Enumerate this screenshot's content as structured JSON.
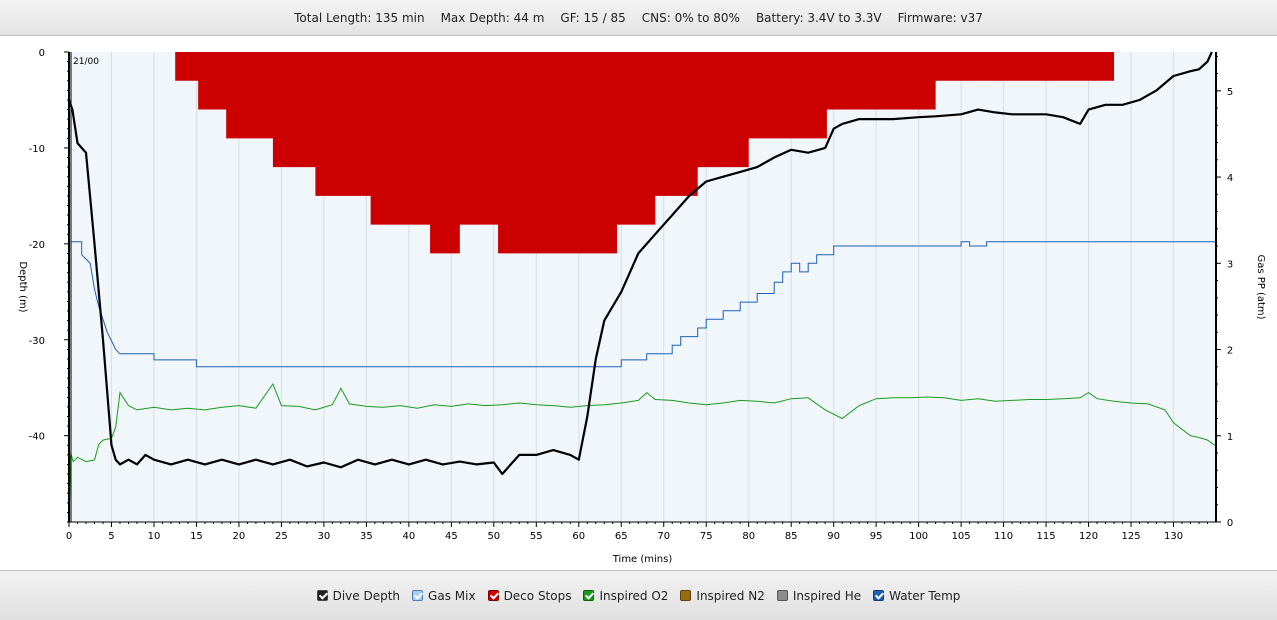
{
  "summary": {
    "total_length": "Total Length: 135 min",
    "max_depth": "Max Depth: 44 m",
    "gf": "GF: 15 / 85",
    "cns": "CNS: 0% to 80%",
    "battery": "Battery: 3.4V to 3.3V",
    "firmware": "Firmware: v37"
  },
  "legend": {
    "dive_depth": "Dive Depth",
    "gas_mix": "Gas Mix",
    "deco_stops": "Deco Stops",
    "inspired_o2": "Inspired O2",
    "inspired_n2": "Inspired N2",
    "inspired_he": "Inspired He",
    "water_temp": "Water Temp"
  },
  "chart_data": {
    "type": "line",
    "xlabel": "Time (mins)",
    "ylabel_left": "Depth (m)",
    "ylabel_right": "Gas PP (atm)",
    "x_range": [
      0,
      135
    ],
    "y_left_range": [
      -49,
      0
    ],
    "y_right_range": [
      0,
      5.45
    ],
    "x_ticks": [
      0,
      5,
      10,
      15,
      20,
      25,
      30,
      35,
      40,
      45,
      50,
      55,
      60,
      65,
      70,
      75,
      80,
      85,
      90,
      95,
      100,
      105,
      110,
      115,
      120,
      125,
      130
    ],
    "y_left_ticks": [
      0,
      -10,
      -20,
      -30,
      -40
    ],
    "y_right_ticks": [
      0,
      1,
      2,
      3,
      4,
      5
    ],
    "gas_mix_label": "21/00",
    "grid": "vertical",
    "colors": {
      "depth": "#000000",
      "deco": "#cc0000",
      "o2": "#1a9b1a",
      "temp": "#1c5fb5",
      "plot_bg": "#f1f6fb"
    },
    "series": [
      {
        "name": "Dive Depth",
        "axis": "left",
        "points": [
          [
            0,
            -5
          ],
          [
            0.4,
            -6
          ],
          [
            1,
            -9.5
          ],
          [
            1.5,
            -10
          ],
          [
            2,
            -10.5
          ],
          [
            3,
            -20
          ],
          [
            4,
            -30
          ],
          [
            5,
            -41
          ],
          [
            5.5,
            -42.5
          ],
          [
            6,
            -43
          ],
          [
            7,
            -42.5
          ],
          [
            8,
            -43
          ],
          [
            9,
            -42
          ],
          [
            10,
            -42.5
          ],
          [
            12,
            -43
          ],
          [
            14,
            -42.5
          ],
          [
            16,
            -43
          ],
          [
            18,
            -42.5
          ],
          [
            20,
            -43
          ],
          [
            22,
            -42.5
          ],
          [
            24,
            -43
          ],
          [
            26,
            -42.5
          ],
          [
            28,
            -43.2
          ],
          [
            30,
            -42.8
          ],
          [
            32,
            -43.3
          ],
          [
            34,
            -42.5
          ],
          [
            36,
            -43
          ],
          [
            38,
            -42.5
          ],
          [
            40,
            -43
          ],
          [
            42,
            -42.5
          ],
          [
            44,
            -43
          ],
          [
            46,
            -42.7
          ],
          [
            48,
            -43
          ],
          [
            50,
            -42.8
          ],
          [
            51,
            -44
          ],
          [
            52,
            -43
          ],
          [
            53,
            -42
          ],
          [
            55,
            -42
          ],
          [
            57,
            -41.5
          ],
          [
            59,
            -42
          ],
          [
            60,
            -42.5
          ],
          [
            61,
            -38
          ],
          [
            62,
            -32
          ],
          [
            63,
            -28
          ],
          [
            65,
            -25
          ],
          [
            67,
            -21
          ],
          [
            69,
            -19
          ],
          [
            71,
            -17
          ],
          [
            73,
            -15
          ],
          [
            75,
            -13.5
          ],
          [
            77,
            -13
          ],
          [
            79,
            -12.5
          ],
          [
            81,
            -12
          ],
          [
            83,
            -11
          ],
          [
            85,
            -10.2
          ],
          [
            87,
            -10.5
          ],
          [
            89,
            -10
          ],
          [
            90,
            -8
          ],
          [
            91,
            -7.5
          ],
          [
            93,
            -7
          ],
          [
            95,
            -7
          ],
          [
            97,
            -7
          ],
          [
            100,
            -6.8
          ],
          [
            102,
            -6.7
          ],
          [
            105,
            -6.5
          ],
          [
            107,
            -6
          ],
          [
            109,
            -6.3
          ],
          [
            111,
            -6.5
          ],
          [
            113,
            -6.5
          ],
          [
            115,
            -6.5
          ],
          [
            117,
            -6.8
          ],
          [
            119,
            -7.5
          ],
          [
            120,
            -6
          ],
          [
            122,
            -5.5
          ],
          [
            124,
            -5.5
          ],
          [
            126,
            -5
          ],
          [
            128,
            -4
          ],
          [
            130,
            -2.5
          ],
          [
            132,
            -2
          ],
          [
            133,
            -1.8
          ],
          [
            134,
            -1
          ],
          [
            134.5,
            0
          ]
        ]
      },
      {
        "name": "Deco Stops",
        "axis": "left",
        "points": [
          [
            12.5,
            -3
          ],
          [
            15.2,
            -3
          ],
          [
            15.2,
            -6
          ],
          [
            18.5,
            -6
          ],
          [
            18.5,
            -9
          ],
          [
            24,
            -9
          ],
          [
            24,
            -12
          ],
          [
            29,
            -12
          ],
          [
            29,
            -15
          ],
          [
            35.5,
            -15
          ],
          [
            35.5,
            -18
          ],
          [
            42.5,
            -18
          ],
          [
            42.5,
            -21
          ],
          [
            46,
            -21
          ],
          [
            46,
            -18
          ],
          [
            50.5,
            -18
          ],
          [
            50.5,
            -21
          ],
          [
            64.5,
            -21
          ],
          [
            64.5,
            -18
          ],
          [
            69,
            -18
          ],
          [
            69,
            -15
          ],
          [
            74,
            -15
          ],
          [
            74,
            -12
          ],
          [
            80,
            -12
          ],
          [
            80,
            -9
          ],
          [
            89.2,
            -9
          ],
          [
            89.2,
            -6
          ],
          [
            102,
            -6
          ],
          [
            102,
            -3
          ],
          [
            123,
            -3
          ]
        ]
      },
      {
        "name": "Inspired O2",
        "axis": "right",
        "points": [
          [
            0,
            0
          ],
          [
            0.2,
            0.8
          ],
          [
            0.5,
            0.7
          ],
          [
            1,
            0.75
          ],
          [
            2,
            0.7
          ],
          [
            3,
            0.72
          ],
          [
            3.5,
            0.9
          ],
          [
            4,
            0.95
          ],
          [
            5,
            0.97
          ],
          [
            5.5,
            1.1
          ],
          [
            6,
            1.5
          ],
          [
            7,
            1.35
          ],
          [
            8,
            1.3
          ],
          [
            10,
            1.33
          ],
          [
            12,
            1.3
          ],
          [
            14,
            1.32
          ],
          [
            16,
            1.3
          ],
          [
            18,
            1.33
          ],
          [
            20,
            1.35
          ],
          [
            22,
            1.32
          ],
          [
            24,
            1.6
          ],
          [
            25,
            1.35
          ],
          [
            27,
            1.34
          ],
          [
            29,
            1.3
          ],
          [
            31,
            1.36
          ],
          [
            32,
            1.55
          ],
          [
            33,
            1.37
          ],
          [
            35,
            1.34
          ],
          [
            37,
            1.33
          ],
          [
            39,
            1.35
          ],
          [
            41,
            1.32
          ],
          [
            43,
            1.36
          ],
          [
            45,
            1.34
          ],
          [
            47,
            1.37
          ],
          [
            49,
            1.35
          ],
          [
            51,
            1.36
          ],
          [
            53,
            1.38
          ],
          [
            55,
            1.36
          ],
          [
            57,
            1.35
          ],
          [
            59,
            1.33
          ],
          [
            61,
            1.35
          ],
          [
            63,
            1.36
          ],
          [
            65,
            1.38
          ],
          [
            67,
            1.41
          ],
          [
            68,
            1.5
          ],
          [
            69,
            1.42
          ],
          [
            71,
            1.41
          ],
          [
            73,
            1.38
          ],
          [
            75,
            1.36
          ],
          [
            77,
            1.38
          ],
          [
            79,
            1.41
          ],
          [
            81,
            1.4
          ],
          [
            83,
            1.38
          ],
          [
            85,
            1.43
          ],
          [
            87,
            1.44
          ],
          [
            89,
            1.3
          ],
          [
            91,
            1.2
          ],
          [
            93,
            1.35
          ],
          [
            95,
            1.43
          ],
          [
            97,
            1.44
          ],
          [
            99,
            1.44
          ],
          [
            101,
            1.45
          ],
          [
            103,
            1.44
          ],
          [
            105,
            1.41
          ],
          [
            107,
            1.43
          ],
          [
            109,
            1.4
          ],
          [
            111,
            1.41
          ],
          [
            113,
            1.42
          ],
          [
            115,
            1.42
          ],
          [
            117,
            1.43
          ],
          [
            119,
            1.44
          ],
          [
            120,
            1.5
          ],
          [
            121,
            1.43
          ],
          [
            123,
            1.4
          ],
          [
            125,
            1.38
          ],
          [
            127,
            1.37
          ],
          [
            129,
            1.3
          ],
          [
            130,
            1.15
          ],
          [
            132,
            1.0
          ],
          [
            133,
            0.98
          ],
          [
            134,
            0.95
          ],
          [
            135,
            0.88
          ]
        ]
      },
      {
        "name": "Water Temp",
        "axis": "right",
        "points": [
          [
            0.3,
            3.25
          ],
          [
            1.5,
            3.25
          ],
          [
            1.5,
            3.1
          ],
          [
            2.5,
            3.0
          ],
          [
            3,
            2.7
          ],
          [
            3.5,
            2.5
          ],
          [
            4,
            2.35
          ],
          [
            4.5,
            2.2
          ],
          [
            5,
            2.1
          ],
          [
            5.5,
            2.0
          ],
          [
            6,
            1.95
          ],
          [
            10,
            1.95
          ],
          [
            10,
            1.88
          ],
          [
            15,
            1.88
          ],
          [
            15,
            1.8
          ],
          [
            65,
            1.8
          ],
          [
            65,
            1.88
          ],
          [
            68,
            1.88
          ],
          [
            68,
            1.95
          ],
          [
            71,
            1.95
          ],
          [
            71,
            2.05
          ],
          [
            72,
            2.05
          ],
          [
            72,
            2.15
          ],
          [
            74,
            2.15
          ],
          [
            74,
            2.25
          ],
          [
            75,
            2.25
          ],
          [
            75,
            2.35
          ],
          [
            77,
            2.35
          ],
          [
            77,
            2.45
          ],
          [
            79,
            2.45
          ],
          [
            79,
            2.55
          ],
          [
            81,
            2.55
          ],
          [
            81,
            2.65
          ],
          [
            83,
            2.65
          ],
          [
            83,
            2.78
          ],
          [
            84,
            2.78
          ],
          [
            84,
            2.9
          ],
          [
            85,
            2.9
          ],
          [
            85,
            3.0
          ],
          [
            86,
            3.0
          ],
          [
            86,
            2.9
          ],
          [
            87,
            2.9
          ],
          [
            87,
            3.0
          ],
          [
            88,
            3.0
          ],
          [
            88,
            3.1
          ],
          [
            90,
            3.1
          ],
          [
            90,
            3.2
          ],
          [
            105,
            3.2
          ],
          [
            105,
            3.25
          ],
          [
            106,
            3.25
          ],
          [
            106,
            3.2
          ],
          [
            108,
            3.2
          ],
          [
            108,
            3.25
          ],
          [
            135,
            3.25
          ]
        ]
      }
    ]
  }
}
